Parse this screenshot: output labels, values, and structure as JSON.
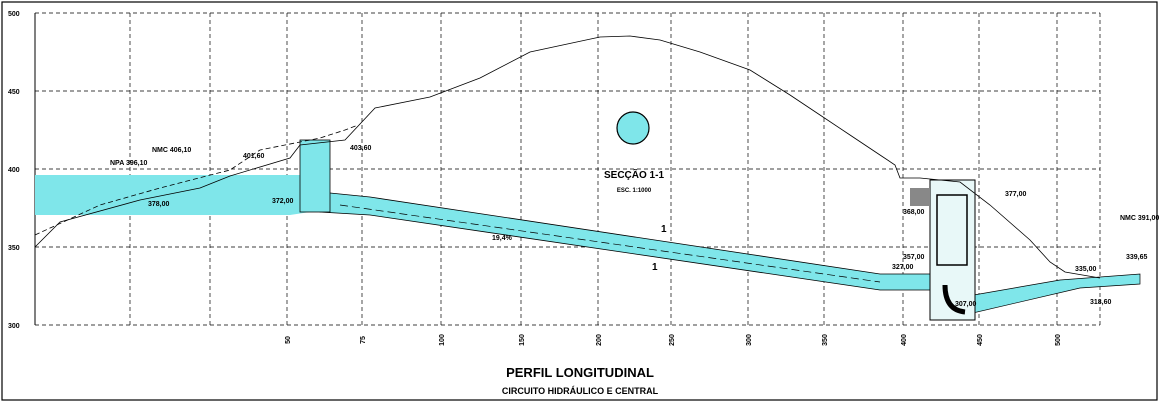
{
  "axis": {
    "y_labels": [
      "500",
      "450",
      "400",
      "350",
      "300"
    ],
    "x_labels": [
      "50",
      "75",
      "100",
      "150",
      "200",
      "250",
      "300",
      "350",
      "400",
      "450",
      "500"
    ]
  },
  "annotations": [
    "NPA 396,10",
    "NMC 406,10",
    "401,60",
    "403,60",
    "378,00",
    "372,00",
    "19,4%",
    "1",
    "1",
    "377,00",
    "368,00",
    "357,00",
    "327,00",
    "NMC 391,00",
    "339,65",
    "335,00",
    "307,00",
    "318,60"
  ],
  "section": {
    "title": "SECÇÃO 1-1",
    "scale": "ESC. 1:1000"
  },
  "footer": {
    "title": "PERFIL LONGITUDINAL",
    "subtitle": "CIRCUITO HIDRÁULICO E CENTRAL"
  }
}
